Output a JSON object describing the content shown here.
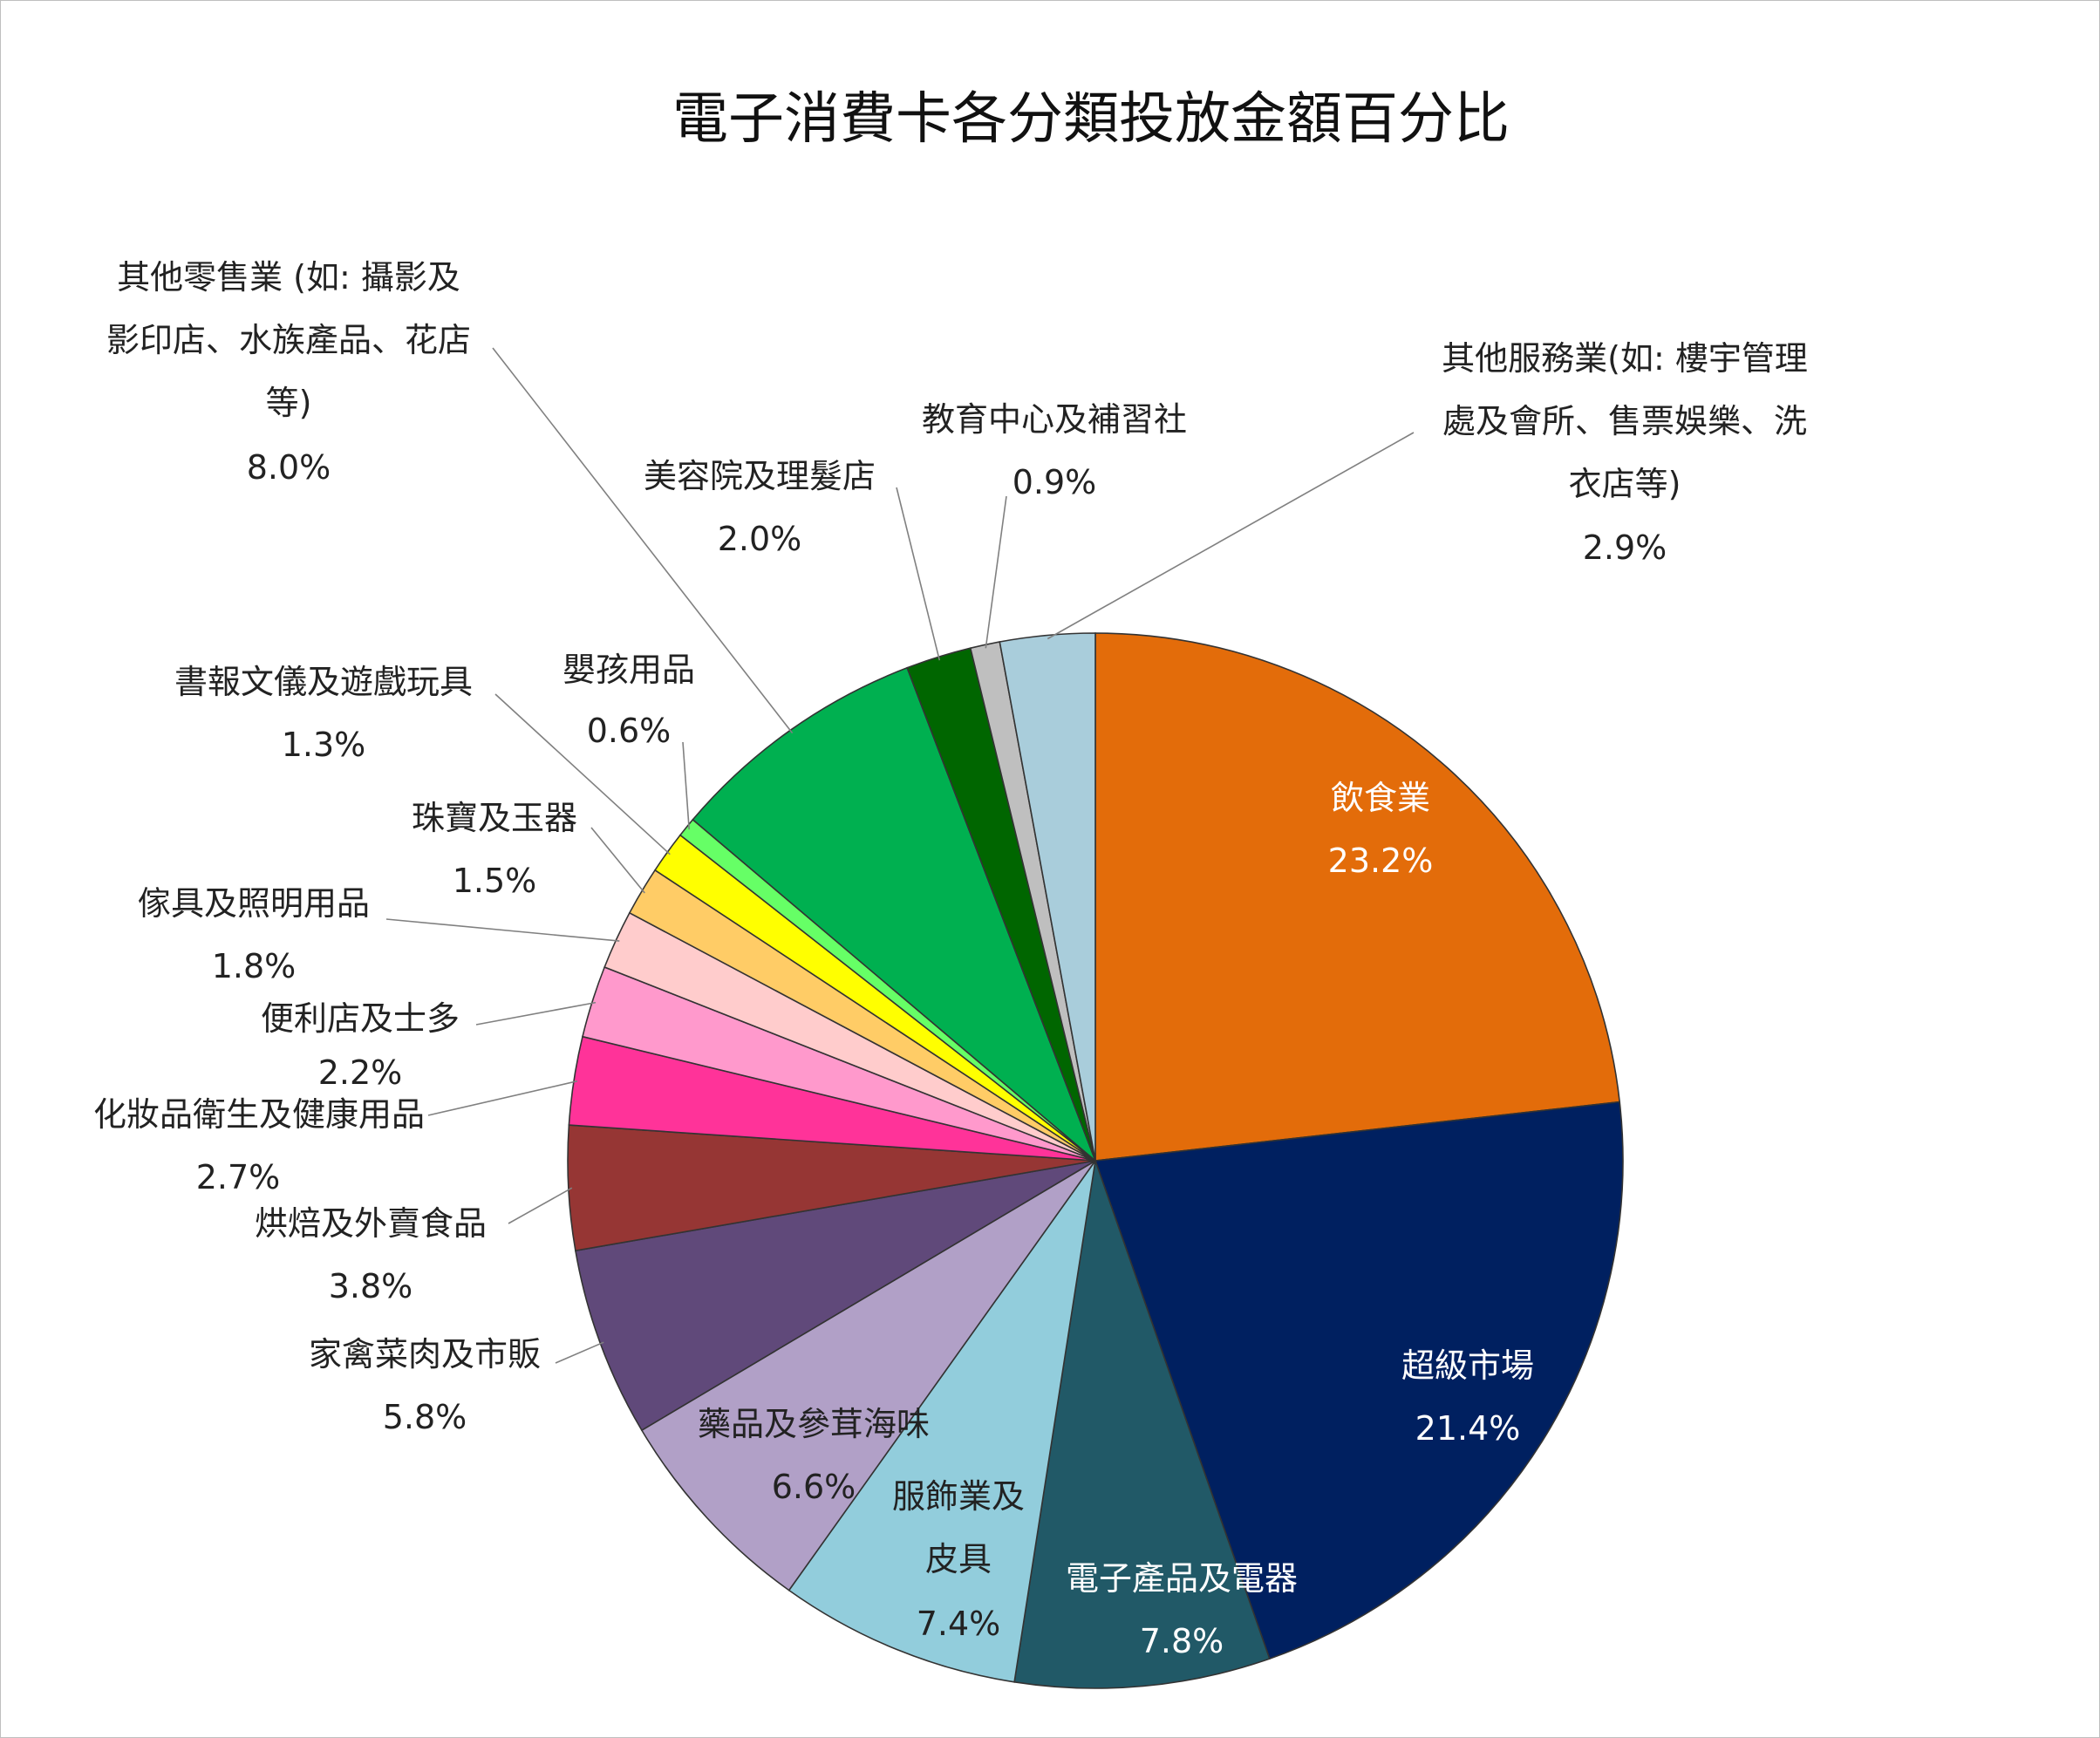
{
  "chart_data": {
    "type": "pie",
    "title": "電子消費卡各分類投放金額百分比",
    "start_angle_deg": 0,
    "direction": "clockwise",
    "slices": [
      {
        "label": "飲食業",
        "value": 23.2,
        "display": "23.2%",
        "color": "#E36C0A",
        "label_style": "inside"
      },
      {
        "label": "超級市場",
        "value": 21.4,
        "display": "21.4%",
        "color": "#002060",
        "label_style": "inside"
      },
      {
        "label": "電子產品及電器",
        "value": 7.8,
        "display": "7.8%",
        "color": "#215967",
        "label_style": "inside"
      },
      {
        "label": "服飾業及皮具",
        "value": 7.4,
        "display": "7.4%",
        "color": "#92CDDC",
        "label_style": "inside-dark"
      },
      {
        "label": "藥品及參茸海味",
        "value": 6.6,
        "display": "6.6%",
        "color": "#B1A0C7",
        "label_style": "inside-dark"
      },
      {
        "label": "家禽菜肉及市販",
        "value": 5.8,
        "display": "5.8%",
        "color": "#60497A",
        "label_style": "outside"
      },
      {
        "label": "烘焙及外賣食品",
        "value": 3.8,
        "display": "3.8%",
        "color": "#963634",
        "label_style": "outside"
      },
      {
        "label": "化妝品衛生及健康用品",
        "value": 2.7,
        "display": "2.7%",
        "color": "#FF3399",
        "label_style": "outside"
      },
      {
        "label": "便利店及士多",
        "value": 2.2,
        "display": "2.2%",
        "color": "#FF99CC",
        "label_style": "outside"
      },
      {
        "label": "傢具及照明用品",
        "value": 1.8,
        "display": "1.8%",
        "color": "#FFCCCC",
        "label_style": "outside"
      },
      {
        "label": "珠寶及玉器",
        "value": 1.5,
        "display": "1.5%",
        "color": "#FFCC66",
        "label_style": "outside"
      },
      {
        "label": "書報文儀及遊戲玩具",
        "value": 1.3,
        "display": "1.3%",
        "color": "#FFFF00",
        "label_style": "outside"
      },
      {
        "label": "嬰孩用品",
        "value": 0.6,
        "display": "0.6%",
        "color": "#66FF66",
        "label_style": "outside"
      },
      {
        "label": "其他零售業 (如: 攝影及影印店、水族產品、花店等)",
        "value": 8.0,
        "display": "8.0%",
        "color": "#00B050",
        "label_style": "outside"
      },
      {
        "label": "美容院及理髮店",
        "value": 2.0,
        "display": "2.0%",
        "color": "#006600",
        "label_style": "outside"
      },
      {
        "label": "教育中心及補習社",
        "value": 0.9,
        "display": "0.9%",
        "color": "#BFBFBF",
        "label_style": "outside"
      },
      {
        "label": "其他服務業(如: 樓宇管理處及會所、售票娛樂、洗衣店等)",
        "value": 2.9,
        "display": "2.9%",
        "color": "#A9CDDB",
        "label_style": "outside"
      }
    ]
  }
}
